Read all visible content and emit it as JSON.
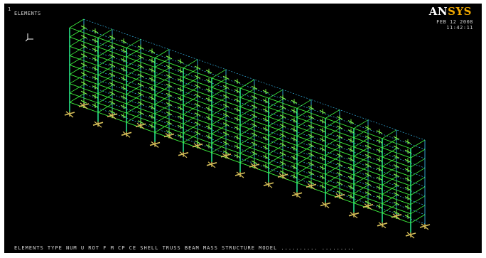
{
  "viewport": {
    "window_number": "1",
    "plot_label": "ELEMENTS",
    "brand_prefix": "AN",
    "brand_suffix": "SYS",
    "date": "FEB 12 2008",
    "time": "11:42:11",
    "status_line": "ELEMENTS  TYPE NUM  U  ROT  F  M  CP  CE  SHELL  TRUSS  BEAM  MASS  STRUCTURE  MODEL  ..........  .........",
    "triad_labels": [
      "Y",
      "Z",
      "X"
    ]
  },
  "colors": {
    "background": "#000000",
    "columns": "#2cff9a",
    "beams": "#3df03d",
    "edges": "#3ac8ff",
    "supports": "#d9c15a",
    "force_arrows": "#7cff4a",
    "brand_accent": "#f0a800"
  },
  "model": {
    "name": "frame-structure",
    "floors": 9,
    "bays_long": 12,
    "bays_deep": 1
  }
}
